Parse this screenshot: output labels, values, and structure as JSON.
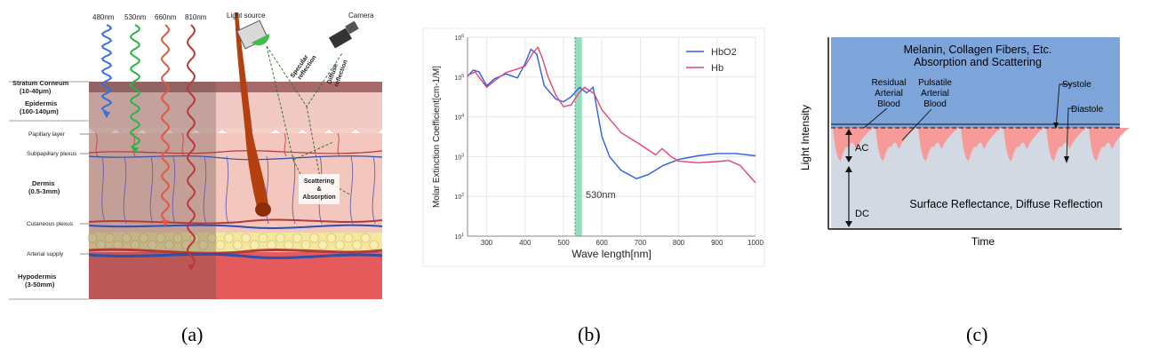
{
  "panel_a": {
    "caption": "(a)",
    "wavelengths": [
      {
        "label": "480nm",
        "color": "#3a6fd8"
      },
      {
        "label": "530nm",
        "color": "#2fb24a"
      },
      {
        "label": "660nm",
        "color": "#e8553e"
      },
      {
        "label": "810nm",
        "color": "#b53a3a"
      }
    ],
    "light_source": "Light source",
    "camera": "Camera",
    "specular": [
      "Specular",
      "reflection"
    ],
    "diffuse": [
      "Diffuse",
      "reflection"
    ],
    "scattering": [
      "Scattering",
      "&",
      "Absorption"
    ],
    "layers": {
      "stratum_corneum": "Stratum Corneum",
      "stratum_corneum_range": "(10-40μm)",
      "epidermis": "Epidermis",
      "epidermis_range": "(100-140μm)",
      "papillary": "Papillary layer",
      "subpapillary": "Subpapillary plexus",
      "dermis": "Dermis",
      "dermis_range": "(0.5-3mm)",
      "cutaneous": "Cutaneous plexus",
      "arterial": "Arterial supply",
      "hypodermis": "Hypodermis",
      "hypodermis_range": "(3-50mm)"
    }
  },
  "panel_b": {
    "caption": "(b)",
    "marker_label": "530nm",
    "marker_color": "#6fd3a8",
    "chart_data": {
      "type": "line",
      "xlabel": "Wave length[nm]",
      "ylabel": "Molar Extinction Coefficient[cm-1/M]",
      "x_ticks": [
        "300",
        "400",
        "500",
        "600",
        "700",
        "800",
        "900",
        "1000"
      ],
      "y_tick_exponents": [
        "6",
        "5",
        "4",
        "3",
        "2",
        "1"
      ],
      "xlim": [
        250,
        1000
      ],
      "ylim_log10": [
        1,
        6
      ],
      "yscale": "log",
      "legend": "top-right",
      "series": [
        {
          "name": "HbO2",
          "color": "#2f5fe0",
          "points": [
            [
              250,
              105000
            ],
            [
              265,
              150000
            ],
            [
              280,
              135000
            ],
            [
              300,
              60000
            ],
            [
              320,
              90000
            ],
            [
              350,
              120000
            ],
            [
              380,
              95000
            ],
            [
              400,
              220000
            ],
            [
              415,
              500000
            ],
            [
              430,
              380000
            ],
            [
              450,
              60000
            ],
            [
              480,
              28000
            ],
            [
              500,
              24000
            ],
            [
              520,
              32000
            ],
            [
              542,
              55000
            ],
            [
              560,
              40000
            ],
            [
              577,
              55000
            ],
            [
              600,
              3200
            ],
            [
              620,
              1000
            ],
            [
              650,
              450
            ],
            [
              690,
              280
            ],
            [
              720,
              350
            ],
            [
              760,
              600
            ],
            [
              800,
              850
            ],
            [
              850,
              1050
            ],
            [
              900,
              1200
            ],
            [
              950,
              1200
            ],
            [
              1000,
              1050
            ]
          ]
        },
        {
          "name": "Hb",
          "color": "#e0457a",
          "points": [
            [
              250,
              110000
            ],
            [
              270,
              135000
            ],
            [
              300,
              55000
            ],
            [
              320,
              80000
            ],
            [
              350,
              130000
            ],
            [
              380,
              160000
            ],
            [
              400,
              190000
            ],
            [
              420,
              400000
            ],
            [
              433,
              560000
            ],
            [
              445,
              300000
            ],
            [
              460,
              100000
            ],
            [
              480,
              35000
            ],
            [
              500,
              18000
            ],
            [
              520,
              20000
            ],
            [
              540,
              40000
            ],
            [
              555,
              55000
            ],
            [
              580,
              38000
            ],
            [
              600,
              15000
            ],
            [
              650,
              4000
            ],
            [
              700,
              2000
            ],
            [
              740,
              1100
            ],
            [
              757,
              1600
            ],
            [
              780,
              1000
            ],
            [
              800,
              770
            ],
            [
              850,
              700
            ],
            [
              900,
              750
            ],
            [
              930,
              800
            ],
            [
              960,
              600
            ],
            [
              1000,
              220
            ]
          ]
        }
      ]
    }
  },
  "panel_c": {
    "caption": "(c)",
    "top_line1": "Melanin, Collagen Fibers, Etc.",
    "top_line2": "Absorption and Scattering",
    "residual": [
      "Residual",
      "Arterial",
      "Blood"
    ],
    "pulsatile": [
      "Pulsatile",
      "Arterial",
      "Blood"
    ],
    "systole": "Systole",
    "diastole": "Diastole",
    "ac": "AC",
    "dc": "DC",
    "bottom": "Surface Reflectance, Diffuse Reflection",
    "ylabel": "Light Intensity",
    "xlabel": "Time",
    "colors": {
      "top": "#7ea5d9",
      "pulse": "#f79a9a",
      "base": "#d2d9e3"
    }
  }
}
